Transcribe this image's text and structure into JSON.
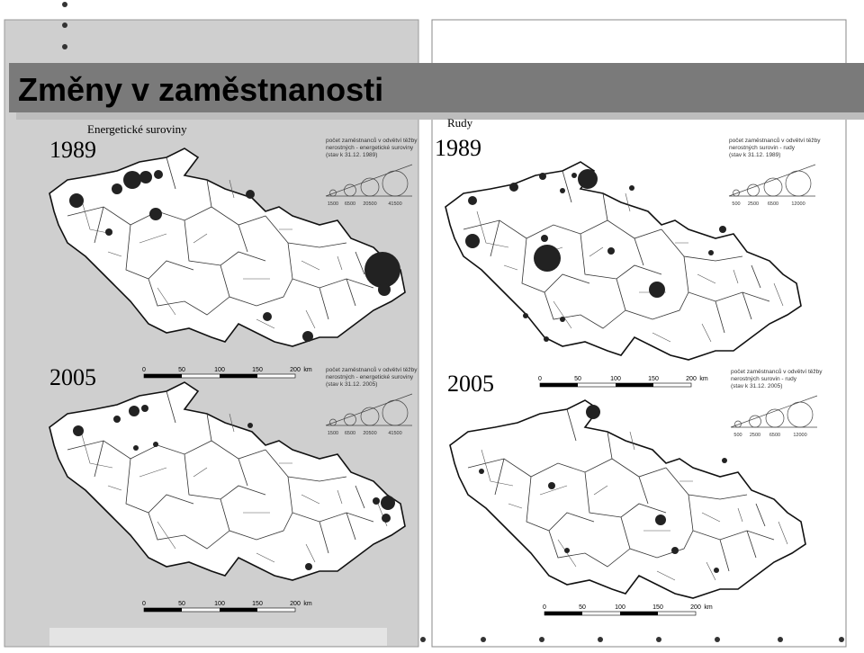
{
  "title": "Změny v zaměstnanosti",
  "panels": [
    {
      "heading": "Energetické suroviny",
      "maps": [
        {
          "year": "1989",
          "legend_lines": [
            "počet zaměstnanců v odvětví těžby",
            "nerostných - energetické suroviny",
            "(stav k 31.12. 1989)"
          ],
          "legend_sizes": [
            "1500",
            "6500",
            "20500",
            "41500"
          ],
          "scale_labels": [
            "0",
            "50",
            "100",
            "150",
            "200",
            "km"
          ]
        },
        {
          "year": "2005",
          "legend_lines": [
            "počet zaměstnanců v odvětví těžby",
            "nerostných - energetické suroviny",
            "(stav k 31.12. 2005)"
          ],
          "legend_sizes": [
            "1500",
            "6500",
            "20500",
            "41500"
          ],
          "scale_labels": [
            "0",
            "50",
            "100",
            "150",
            "200",
            "km"
          ]
        }
      ]
    },
    {
      "heading": "Rudy",
      "maps": [
        {
          "year": "1989",
          "legend_lines": [
            "počet zaměstnanců v odvětví těžby",
            "nerostných surovin - rudy",
            "(stav k 31.12. 1989)"
          ],
          "legend_sizes": [
            "500",
            "2500",
            "6500",
            "12000"
          ],
          "scale_labels": [
            "0",
            "50",
            "100",
            "150",
            "200",
            "km"
          ]
        },
        {
          "year": "2005",
          "legend_lines": [
            "počet zaměstnanců v odvětví těžby",
            "nerostných surovin - rudy",
            "(stav k 31.12. 2005)"
          ],
          "legend_sizes": [
            "500",
            "2500",
            "6500",
            "12000"
          ],
          "scale_labels": [
            "0",
            "50",
            "100",
            "150",
            "200",
            "km"
          ]
        }
      ]
    }
  ]
}
